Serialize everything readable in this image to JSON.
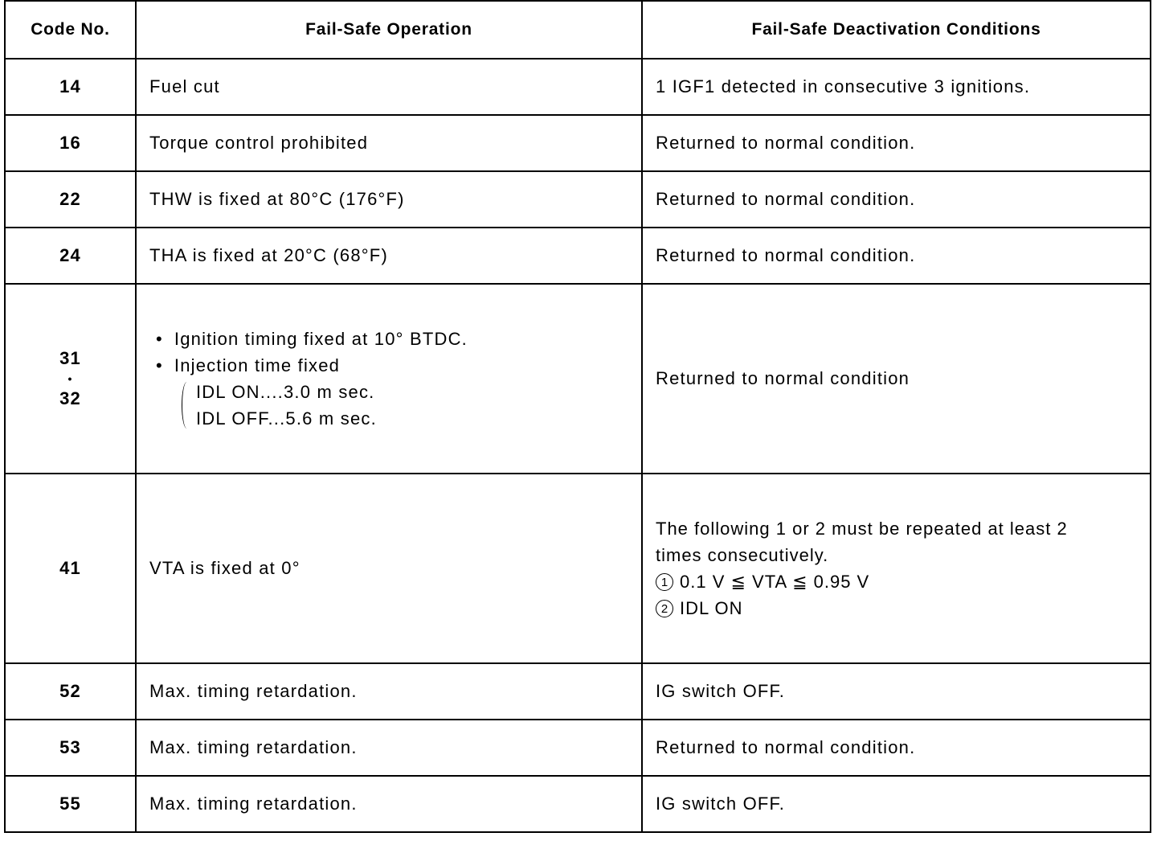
{
  "headers": [
    "Code No.",
    "Fail-Safe Operation",
    "Fail-Safe Deactivation Conditions"
  ],
  "rows": [
    {
      "code": "14",
      "operation": "Fuel cut",
      "condition": "1 IGF1 detected in consecutive 3 ignitions."
    },
    {
      "code": "16",
      "operation": "Torque control prohibited",
      "condition": "Returned to normal condition."
    },
    {
      "code": "22",
      "operation": "THW is fixed at 80°C (176°F)",
      "condition": "Returned to normal condition."
    },
    {
      "code": "24",
      "operation": "THA is fixed at 20°C (68°F)",
      "condition": "Returned to normal condition."
    },
    {
      "code_a": "31",
      "code_sep": "•",
      "code_b": "32",
      "operation_bullets": [
        "Ignition timing fixed at 10° BTDC.",
        "Injection time fixed"
      ],
      "operation_sub": [
        "IDL ON....3.0 m sec.",
        "IDL OFF...5.6 m sec."
      ],
      "condition": "Returned to normal condition"
    },
    {
      "code": "41",
      "operation": "VTA is fixed at 0°",
      "condition_lines": [
        "The following 1 or 2 must be repeated at least 2",
        "times consecutively."
      ],
      "condition_items": [
        {
          "num": "1",
          "text": "0.1 V ≦ VTA ≦ 0.95 V"
        },
        {
          "num": "2",
          "text": "IDL ON"
        }
      ]
    },
    {
      "code": "52",
      "operation": "Max. timing retardation.",
      "condition": "IG switch OFF."
    },
    {
      "code": "53",
      "operation": "Max. timing retardation.",
      "condition": "Returned to normal condition."
    },
    {
      "code": "55",
      "operation": "Max. timing retardation.",
      "condition": "IG switch OFF."
    }
  ]
}
